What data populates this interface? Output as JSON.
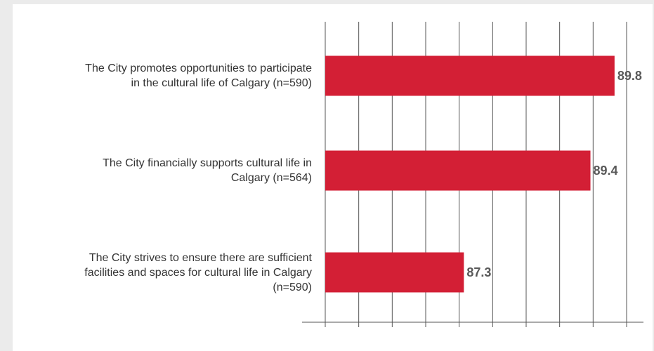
{
  "chart_data": {
    "type": "bar",
    "orientation": "horizontal",
    "categories": [
      "The City promotes opportunities to participate in the cultural life of Calgary (n=590)",
      "The City financially supports cultural life in Calgary (n=564)",
      "The City strives to ensure there are sufficient facilities and spaces for cultural life in Calgary (n=590)"
    ],
    "category_lines": [
      [
        "The City promotes opportunities to participate",
        "in the cultural life of Calgary (n=590)"
      ],
      [
        "The City financially supports cultural life in",
        "Calgary (n=564)"
      ],
      [
        "The City strives to ensure there are sufficient",
        "facilities and spaces for cultural life in Calgary",
        "(n=590)"
      ]
    ],
    "values": [
      89.8,
      89.4,
      87.3
    ],
    "value_labels": [
      "89.8",
      "89.4",
      "87.3"
    ],
    "xlim": [
      85,
      90
    ],
    "grid": true,
    "colors": {
      "bar": "#d31f35",
      "value_label": "#595959",
      "grid": "#555555",
      "background": "#ffffff",
      "page": "#ebebeb"
    }
  }
}
